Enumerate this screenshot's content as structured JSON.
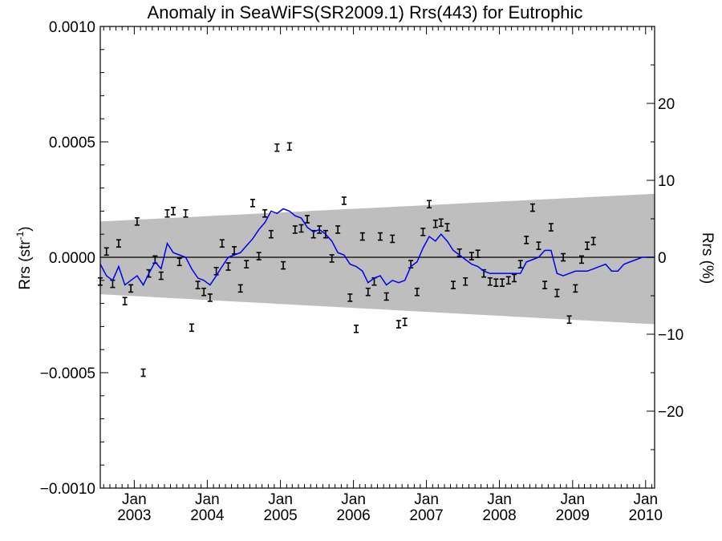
{
  "chart_data": {
    "type": "line",
    "title": "Anomaly in SeaWiFS(SR2009.1) Rrs(443) for Eutrophic",
    "ylabel_main": "Rrs (str",
    "ylabel_sup": "-1",
    "ylabel_close": ")",
    "ylabel_right": "Rrs (%)",
    "xlim": [
      "2002-07-15",
      "2010-02-15"
    ],
    "ylim": [
      -0.001,
      0.001
    ],
    "y2lim": [
      -30,
      30
    ],
    "y_ticks": [
      "0.0010",
      "0.0005",
      "0.0000",
      "−0.0005",
      "−0.0010"
    ],
    "y_tick_values": [
      0.001,
      0.0005,
      0.0,
      -0.0005,
      -0.001
    ],
    "y2_ticks": [
      "20",
      "10",
      "0",
      "−10",
      "−20"
    ],
    "y2_tick_values": [
      20,
      10,
      0,
      -10,
      -20
    ],
    "x_ticks": [
      {
        "month": "Jan",
        "year": "2003",
        "date": "2003-01-01"
      },
      {
        "month": "Jan",
        "year": "2004",
        "date": "2004-01-01"
      },
      {
        "month": "Jan",
        "year": "2005",
        "date": "2005-01-01"
      },
      {
        "month": "Jan",
        "year": "2006",
        "date": "2006-01-01"
      },
      {
        "month": "Jan",
        "year": "2007",
        "date": "2007-01-01"
      },
      {
        "month": "Jan",
        "year": "2008",
        "date": "2008-01-01"
      },
      {
        "month": "Jan",
        "year": "2009",
        "date": "2009-01-01"
      },
      {
        "month": "Jan",
        "year": "2010",
        "date": "2010-01-01"
      }
    ],
    "envelope": {
      "dates": [
        "2002-07-15",
        "2010-02-15"
      ],
      "upper": [
        0.000155,
        0.000275
      ],
      "lower": [
        -0.00016,
        -0.00029
      ],
      "color": "#bebebe"
    },
    "zero_line": 0,
    "series": [
      {
        "kind": "errorbar",
        "color": "#000000",
        "points": [
          [
            "2002-07-15",
            -0.000105
          ],
          [
            "2002-08-15",
            2.5e-05
          ],
          [
            "2002-09-15",
            -0.000115
          ],
          [
            "2002-10-15",
            6e-05
          ],
          [
            "2002-11-15",
            -0.00019
          ],
          [
            "2002-12-15",
            -0.000135
          ],
          [
            "2003-01-15",
            0.000155
          ],
          [
            "2003-02-15",
            -0.0005
          ],
          [
            "2003-03-15",
            -7e-05
          ],
          [
            "2003-04-15",
            -1e-05
          ],
          [
            "2003-05-15",
            -8e-05
          ],
          [
            "2003-06-15",
            0.00019
          ],
          [
            "2003-07-15",
            0.0002
          ],
          [
            "2003-08-15",
            -2e-05
          ],
          [
            "2003-09-15",
            0.00019
          ],
          [
            "2003-10-15",
            -0.000305
          ],
          [
            "2003-11-15",
            -0.00012
          ],
          [
            "2003-12-15",
            -0.00015
          ],
          [
            "2004-01-15",
            -0.000175
          ],
          [
            "2004-02-15",
            -6e-05
          ],
          [
            "2004-03-15",
            6e-05
          ],
          [
            "2004-04-15",
            -4e-05
          ],
          [
            "2004-05-15",
            3e-05
          ],
          [
            "2004-06-15",
            -0.000135
          ],
          [
            "2004-07-15",
            -3e-05
          ],
          [
            "2004-08-15",
            0.000235
          ],
          [
            "2004-09-15",
            5e-06
          ],
          [
            "2004-10-15",
            0.00019
          ],
          [
            "2004-11-15",
            0.0001
          ],
          [
            "2004-12-15",
            0.000475
          ],
          [
            "2005-01-15",
            -3.5e-05
          ],
          [
            "2005-02-15",
            0.00048
          ],
          [
            "2005-03-15",
            0.00012
          ],
          [
            "2005-04-15",
            0.000125
          ],
          [
            "2005-05-15",
            0.000165
          ],
          [
            "2005-06-15",
            0.0001
          ],
          [
            "2005-07-15",
            0.00012
          ],
          [
            "2005-08-15",
            0.0001
          ],
          [
            "2005-09-15",
            -5e-06
          ],
          [
            "2005-10-15",
            0.00012
          ],
          [
            "2005-11-15",
            0.000245
          ],
          [
            "2005-12-15",
            -0.000175
          ],
          [
            "2006-01-15",
            -0.00031
          ],
          [
            "2006-02-15",
            9e-05
          ],
          [
            "2006-03-15",
            -0.00015
          ],
          [
            "2006-04-15",
            -0.000105
          ],
          [
            "2006-05-15",
            9e-05
          ],
          [
            "2006-06-15",
            -0.00017
          ],
          [
            "2006-07-15",
            8e-05
          ],
          [
            "2006-08-15",
            -0.00029
          ],
          [
            "2006-09-15",
            -0.00028
          ],
          [
            "2006-10-15",
            -3e-05
          ],
          [
            "2006-11-15",
            -0.00015
          ],
          [
            "2006-12-15",
            0.00011
          ],
          [
            "2007-01-15",
            0.00023
          ],
          [
            "2007-02-15",
            0.000145
          ],
          [
            "2007-03-15",
            0.00015
          ],
          [
            "2007-04-15",
            0.00013
          ],
          [
            "2007-05-15",
            -0.00012
          ],
          [
            "2007-06-15",
            2e-05
          ],
          [
            "2007-07-15",
            -0.000105
          ],
          [
            "2007-08-15",
            5e-06
          ],
          [
            "2007-09-15",
            1.5e-05
          ],
          [
            "2007-10-15",
            -7e-05
          ],
          [
            "2007-11-15",
            -0.000105
          ],
          [
            "2007-12-15",
            -0.00011
          ],
          [
            "2008-01-15",
            -0.00011
          ],
          [
            "2008-02-15",
            -0.0001
          ],
          [
            "2008-03-15",
            -9e-05
          ],
          [
            "2008-04-15",
            -3e-05
          ],
          [
            "2008-05-15",
            7.5e-05
          ],
          [
            "2008-06-15",
            0.000215
          ],
          [
            "2008-07-15",
            5e-05
          ],
          [
            "2008-08-15",
            -0.00012
          ],
          [
            "2008-09-15",
            0.00013
          ],
          [
            "2008-10-15",
            -0.000155
          ],
          [
            "2008-11-15",
            0.0
          ],
          [
            "2008-12-15",
            -0.00027
          ],
          [
            "2009-01-15",
            -0.000135
          ],
          [
            "2009-02-15",
            -1e-05
          ],
          [
            "2009-03-15",
            5e-05
          ],
          [
            "2009-04-15",
            7e-05
          ]
        ]
      },
      {
        "kind": "line",
        "name": "",
        "color": "#0000ee",
        "points": [
          [
            "2002-07-15",
            -3e-05
          ],
          [
            "2002-08-15",
            -8e-05
          ],
          [
            "2002-09-15",
            -0.0001
          ],
          [
            "2002-10-15",
            -4e-05
          ],
          [
            "2002-11-15",
            -0.00012
          ],
          [
            "2002-12-15",
            -0.0001
          ],
          [
            "2003-01-15",
            -8e-05
          ],
          [
            "2003-02-15",
            -0.00012
          ],
          [
            "2003-03-15",
            -7e-05
          ],
          [
            "2003-04-15",
            -2e-05
          ],
          [
            "2003-05-15",
            -5e-05
          ],
          [
            "2003-06-15",
            6e-05
          ],
          [
            "2003-07-15",
            2e-05
          ],
          [
            "2003-08-15",
            1e-05
          ],
          [
            "2003-09-15",
            0.0
          ],
          [
            "2003-10-15",
            -5e-05
          ],
          [
            "2003-11-15",
            -9e-05
          ],
          [
            "2003-12-15",
            -0.0001
          ],
          [
            "2004-01-15",
            -0.00012
          ],
          [
            "2004-02-15",
            -8e-05
          ],
          [
            "2004-03-15",
            -4e-05
          ],
          [
            "2004-04-15",
            0.0
          ],
          [
            "2004-05-15",
            1e-05
          ],
          [
            "2004-06-15",
            2e-05
          ],
          [
            "2004-07-15",
            5e-05
          ],
          [
            "2004-08-15",
            8e-05
          ],
          [
            "2004-09-15",
            0.00012
          ],
          [
            "2004-10-15",
            0.00015
          ],
          [
            "2004-11-15",
            0.0002
          ],
          [
            "2004-12-15",
            0.00019
          ],
          [
            "2005-01-15",
            0.00021
          ],
          [
            "2005-02-15",
            0.0002
          ],
          [
            "2005-03-15",
            0.00018
          ],
          [
            "2005-04-15",
            0.00017
          ],
          [
            "2005-05-15",
            0.00013
          ],
          [
            "2005-06-15",
            0.00011
          ],
          [
            "2005-07-15",
            0.00012
          ],
          [
            "2005-08-15",
            0.0001
          ],
          [
            "2005-09-15",
            7e-05
          ],
          [
            "2005-10-15",
            2e-05
          ],
          [
            "2005-11-15",
            1e-05
          ],
          [
            "2005-12-15",
            -3e-05
          ],
          [
            "2006-01-15",
            -4e-05
          ],
          [
            "2006-02-15",
            -6e-05
          ],
          [
            "2006-03-15",
            -0.00011
          ],
          [
            "2006-04-15",
            -9e-05
          ],
          [
            "2006-05-15",
            -8e-05
          ],
          [
            "2006-06-15",
            -0.00012
          ],
          [
            "2006-07-15",
            -0.0001
          ],
          [
            "2006-08-15",
            -0.00011
          ],
          [
            "2006-09-15",
            -0.0001
          ],
          [
            "2006-10-15",
            -4e-05
          ],
          [
            "2006-11-15",
            -2e-05
          ],
          [
            "2006-12-15",
            4e-05
          ],
          [
            "2007-01-15",
            9e-05
          ],
          [
            "2007-02-15",
            7e-05
          ],
          [
            "2007-03-15",
            0.0001
          ],
          [
            "2007-04-15",
            7e-05
          ],
          [
            "2007-05-15",
            3e-05
          ],
          [
            "2007-06-15",
            1e-05
          ],
          [
            "2007-07-15",
            -1e-05
          ],
          [
            "2007-08-15",
            -3e-05
          ],
          [
            "2007-09-15",
            -4e-05
          ],
          [
            "2007-10-15",
            -6e-05
          ],
          [
            "2007-11-15",
            -7e-05
          ],
          [
            "2007-12-15",
            -7e-05
          ],
          [
            "2008-01-15",
            -7e-05
          ],
          [
            "2008-02-15",
            -7e-05
          ],
          [
            "2008-03-15",
            -7e-05
          ],
          [
            "2008-04-15",
            -7e-05
          ],
          [
            "2008-05-15",
            -2e-05
          ],
          [
            "2008-06-15",
            -1e-05
          ],
          [
            "2008-07-15",
            0.0
          ],
          [
            "2008-08-15",
            3e-05
          ],
          [
            "2008-09-15",
            3e-05
          ],
          [
            "2008-10-15",
            -7e-05
          ],
          [
            "2008-11-15",
            -8e-05
          ],
          [
            "2008-12-15",
            -7e-05
          ],
          [
            "2009-01-15",
            -6e-05
          ],
          [
            "2009-02-15",
            -6e-05
          ],
          [
            "2009-03-15",
            -6e-05
          ],
          [
            "2009-04-15",
            -5e-05
          ],
          [
            "2009-05-15",
            -4e-05
          ],
          [
            "2009-06-15",
            -3e-05
          ],
          [
            "2009-07-15",
            -6e-05
          ],
          [
            "2009-08-15",
            -6e-05
          ],
          [
            "2009-09-15",
            -3e-05
          ],
          [
            "2009-10-15",
            -2e-05
          ],
          [
            "2009-11-15",
            -1e-05
          ],
          [
            "2009-12-15",
            0.0
          ],
          [
            "2010-01-15",
            0.0
          ],
          [
            "2010-02-15",
            0.0
          ]
        ]
      }
    ],
    "grid": false,
    "legend": "none"
  }
}
